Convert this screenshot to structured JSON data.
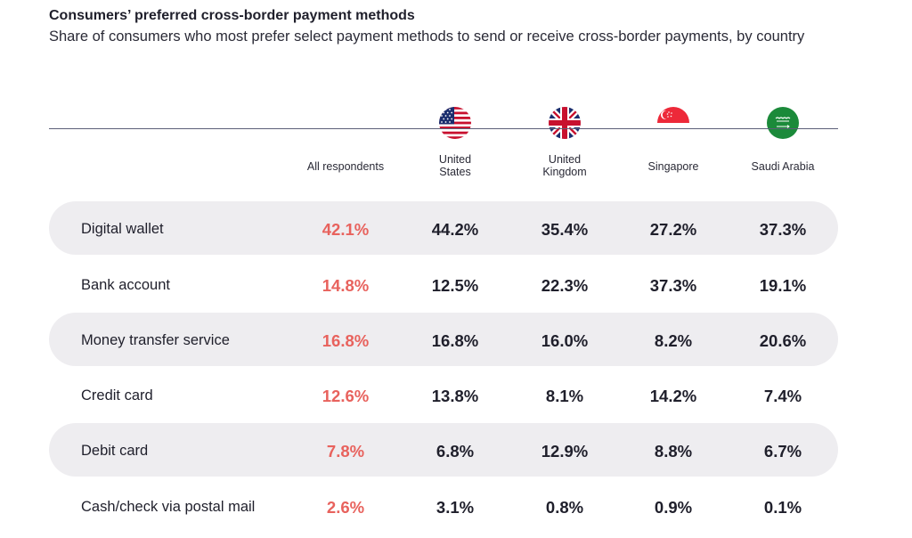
{
  "header": {
    "title": "Consumers’ preferred cross-border payment methods",
    "subtitle": "Share of consumers who most prefer select payment methods to send or receive cross-border payments, by country"
  },
  "columns": [
    {
      "label": "All respondents",
      "flag": null
    },
    {
      "label": "United\nStates",
      "flag": "united-states-flag-icon"
    },
    {
      "label": "United\nKingdom",
      "flag": "united-kingdom-flag-icon"
    },
    {
      "label": "Singapore",
      "flag": "singapore-flag-icon"
    },
    {
      "label": "Saudi Arabia",
      "flag": "saudi-arabia-flag-icon"
    }
  ],
  "colors": {
    "accent": "#e8625d",
    "row_band": "#eeedf0",
    "rule": "#5c6078"
  },
  "chart_data": {
    "type": "table",
    "columns": [
      "All respondents",
      "United States",
      "United Kingdom",
      "Singapore",
      "Saudi Arabia"
    ],
    "rows": [
      {
        "label": "Digital wallet",
        "values": [
          "42.1%",
          "44.2%",
          "35.4%",
          "27.2%",
          "37.3%"
        ]
      },
      {
        "label": "Bank account",
        "values": [
          "14.8%",
          "12.5%",
          "22.3%",
          "37.3%",
          "19.1%"
        ]
      },
      {
        "label": "Money transfer service",
        "values": [
          "16.8%",
          "16.8%",
          "16.0%",
          "8.2%",
          "20.6%"
        ]
      },
      {
        "label": "Credit card",
        "values": [
          "12.6%",
          "13.8%",
          "8.1%",
          "14.2%",
          "7.4%"
        ]
      },
      {
        "label": "Debit card",
        "values": [
          "7.8%",
          "6.8%",
          "12.9%",
          "8.8%",
          "6.7%"
        ]
      },
      {
        "label": "Cash/check via postal mail",
        "values": [
          "2.6%",
          "3.1%",
          "0.8%",
          "0.9%",
          "0.1%"
        ]
      }
    ]
  }
}
